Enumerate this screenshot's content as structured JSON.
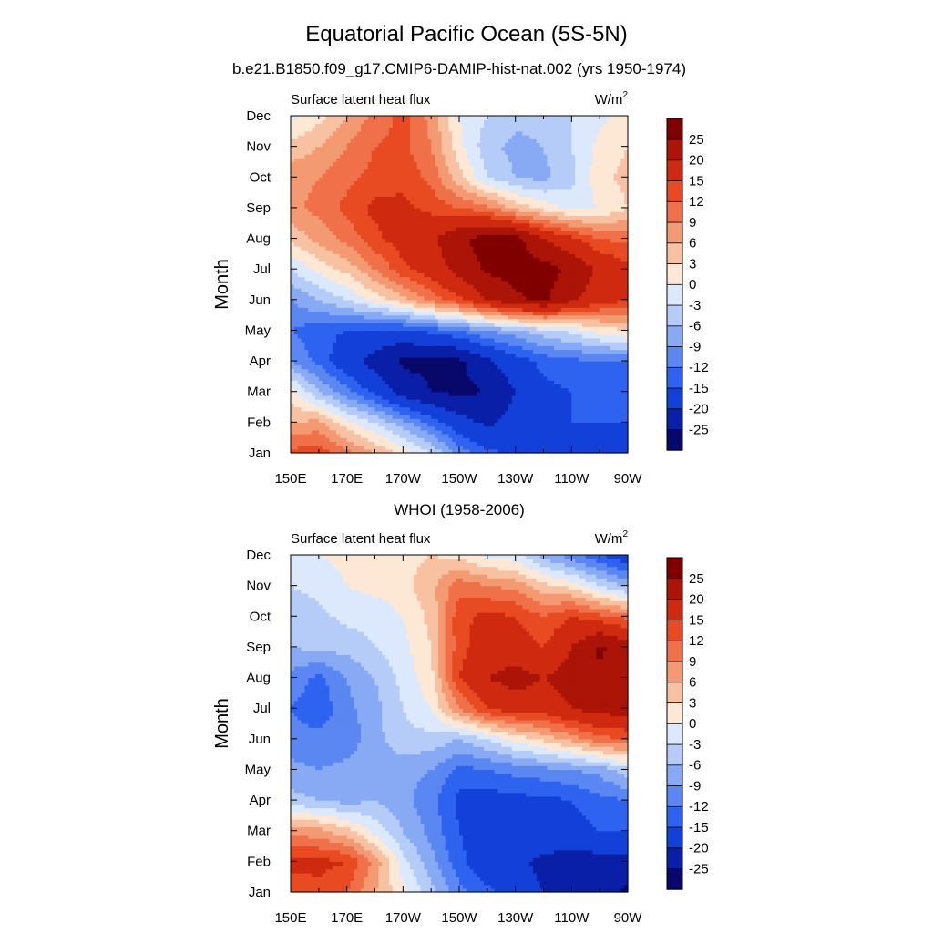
{
  "figure": {
    "title": "Equatorial Pacific Ocean (5S-5N)"
  },
  "colorbar": {
    "levels": [
      -25,
      -20,
      -15,
      -12,
      -9,
      -6,
      -3,
      0,
      3,
      6,
      9,
      12,
      15,
      20,
      25
    ],
    "colors": [
      "#08086b",
      "#0a1fa8",
      "#1240d8",
      "#2e63f0",
      "#5a87f2",
      "#88aaf4",
      "#b4ccf7",
      "#dce8fb",
      "#fde8d6",
      "#f8c2a2",
      "#f49a72",
      "#f0704a",
      "#e84a22",
      "#cf2a10",
      "#ab1406",
      "#800000"
    ],
    "tick_labels": [
      "-25",
      "-20",
      "-15",
      "-12",
      "-9",
      "-6",
      "-3",
      "0",
      "3",
      "6",
      "9",
      "12",
      "15",
      "20",
      "25"
    ]
  },
  "chart_data": [
    {
      "type": "heatmap",
      "title": "b.e21.B1850.f09_g17.CMIP6-DAMIP-hist-nat.002 (yrs 1950-1974)",
      "left_label": "Surface latent heat flux",
      "units_base": "W/m",
      "units_exp": "2",
      "ylabel": "Month",
      "x_tick_labels": [
        "150E",
        "170E",
        "170W",
        "150W",
        "130W",
        "110W",
        "90W"
      ],
      "y_tick_labels": [
        "Jan",
        "Feb",
        "Mar",
        "Apr",
        "May",
        "Jun",
        "Jul",
        "Aug",
        "Sep",
        "Oct",
        "Nov",
        "Dec"
      ],
      "x_values": [
        150,
        160,
        170,
        180,
        190,
        200,
        210,
        220,
        230,
        240,
        250,
        260,
        270
      ],
      "xlim": [
        150,
        270
      ],
      "ylim": [
        1,
        12
      ],
      "values": [
        [
          13,
          14,
          10,
          6,
          2,
          -3,
          -10,
          -14,
          -16,
          -17,
          -18,
          -20,
          -20
        ],
        [
          6,
          7,
          1,
          -3,
          -8,
          -13,
          -18,
          -21,
          -18,
          -16,
          -15,
          -15,
          -15
        ],
        [
          2,
          -6,
          -11,
          -16,
          -22,
          -25,
          -26,
          -25,
          -20,
          -16,
          -15,
          -14,
          -14
        ],
        [
          -9,
          -13,
          -18,
          -22,
          -26,
          -26,
          -26,
          -21,
          -17,
          -14,
          -13,
          -12,
          -12
        ],
        [
          -12,
          -14,
          -15,
          -16,
          -16,
          -14,
          -12,
          -9,
          -7,
          -4,
          -2,
          1,
          3
        ],
        [
          -9,
          -6,
          -3,
          1,
          5,
          10,
          14,
          20,
          24,
          26,
          21,
          17,
          15
        ],
        [
          -3,
          1,
          4,
          9,
          14,
          17,
          22,
          26,
          27,
          27,
          24,
          19,
          16
        ],
        [
          4,
          7,
          10,
          14,
          17,
          19,
          24,
          27,
          27,
          20,
          16,
          12,
          11
        ],
        [
          8,
          10,
          13,
          16,
          16,
          14,
          12,
          10,
          5,
          2,
          -1,
          0,
          3
        ],
        [
          8,
          9,
          11,
          13,
          14,
          11,
          4,
          -3,
          -6,
          -7,
          -4,
          2,
          4
        ],
        [
          4,
          6,
          9,
          12,
          13,
          9,
          1,
          -5,
          -7,
          -6,
          -3,
          1,
          3
        ],
        [
          -1,
          2,
          6,
          10,
          13,
          8,
          0,
          -3,
          -5,
          -5,
          -3,
          -1,
          1
        ]
      ]
    },
    {
      "type": "heatmap",
      "title": "WHOI (1958-2006)",
      "left_label": "Surface latent heat flux",
      "units_base": "W/m",
      "units_exp": "2",
      "ylabel": "Month",
      "x_tick_labels": [
        "150E",
        "170E",
        "170W",
        "150W",
        "130W",
        "110W",
        "90W"
      ],
      "y_tick_labels": [
        "Jan",
        "Feb",
        "Mar",
        "Apr",
        "May",
        "Jun",
        "Jul",
        "Aug",
        "Sep",
        "Oct",
        "Nov",
        "Dec"
      ],
      "x_values": [
        150,
        160,
        170,
        180,
        190,
        200,
        210,
        220,
        230,
        240,
        250,
        260,
        270
      ],
      "xlim": [
        150,
        270
      ],
      "ylim": [
        1,
        12
      ],
      "values": [
        [
          13,
          14,
          12,
          6,
          1,
          -5,
          -11,
          -14,
          -18,
          -20,
          -20,
          -22,
          -26
        ],
        [
          16,
          16,
          15,
          8,
          -2,
          -8,
          -14,
          -18,
          -19,
          -21,
          -22,
          -22,
          -22
        ],
        [
          8,
          7,
          4,
          -1,
          -6,
          -10,
          -15,
          -17,
          -16,
          -17,
          -17,
          -15,
          -15
        ],
        [
          -5,
          -6,
          -7,
          -6,
          -8,
          -11,
          -16,
          -17,
          -16,
          -16,
          -15,
          -13,
          -12
        ],
        [
          -8,
          -9,
          -8,
          -7,
          -8,
          -9,
          -13,
          -12,
          -11,
          -10,
          -9,
          -8,
          -4
        ],
        [
          -11,
          -11,
          -11,
          -7,
          -4,
          -4,
          -6,
          -3,
          1,
          4,
          7,
          11,
          12
        ],
        [
          -12,
          -14,
          -10,
          -7,
          -3,
          0,
          9,
          15,
          17,
          17,
          20,
          22,
          22
        ],
        [
          -10,
          -13,
          -9,
          -6,
          -2,
          2,
          15,
          20,
          22,
          20,
          22,
          24,
          23
        ],
        [
          -6,
          -5,
          -5,
          -3,
          -1,
          3,
          14,
          17,
          17,
          15,
          20,
          26,
          22
        ],
        [
          -5,
          -4,
          -2,
          -2,
          0,
          4,
          14,
          16,
          15,
          12,
          15,
          13,
          11
        ],
        [
          -3,
          -2,
          0,
          1,
          2,
          5,
          11,
          9,
          8,
          4,
          2,
          -3,
          -7
        ],
        [
          -1,
          0,
          1,
          2,
          2,
          3,
          2,
          -1,
          -2,
          -7,
          -11,
          -15,
          -18
        ]
      ]
    }
  ]
}
